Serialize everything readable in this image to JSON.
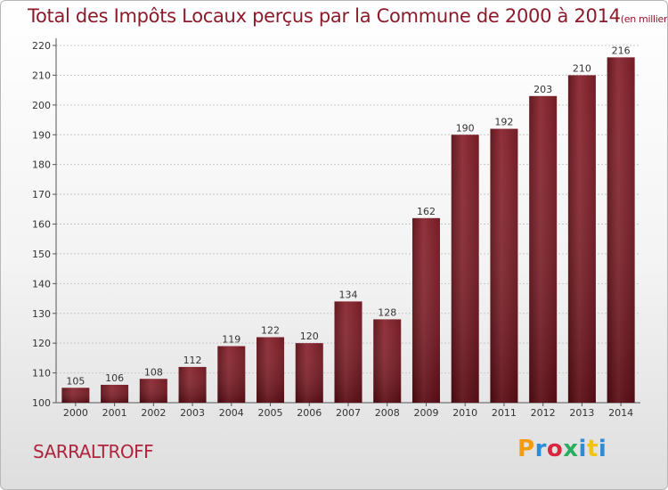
{
  "chart_data": {
    "type": "bar",
    "title": "Total des Impôts Locaux perçus par la Commune de 2000 à 2014",
    "unit_note": "(en milliers d'€)",
    "categories": [
      "2000",
      "2001",
      "2002",
      "2003",
      "2004",
      "2005",
      "2006",
      "2007",
      "2008",
      "2009",
      "2010",
      "2011",
      "2012",
      "2013",
      "2014"
    ],
    "values": [
      105,
      106,
      108,
      112,
      119,
      122,
      120,
      134,
      128,
      162,
      190,
      192,
      203,
      210,
      216
    ],
    "ylim": [
      100,
      220
    ],
    "yticks": [
      100,
      110,
      120,
      130,
      140,
      150,
      160,
      170,
      180,
      190,
      200,
      210,
      220
    ],
    "grid": true,
    "bar_color": "#7a1a22",
    "xlabel": "",
    "ylabel": ""
  },
  "commune_name": "SARRALTROFF",
  "brand": {
    "letters": [
      "P",
      "r",
      "o",
      "x",
      "i",
      "t",
      "i"
    ]
  }
}
